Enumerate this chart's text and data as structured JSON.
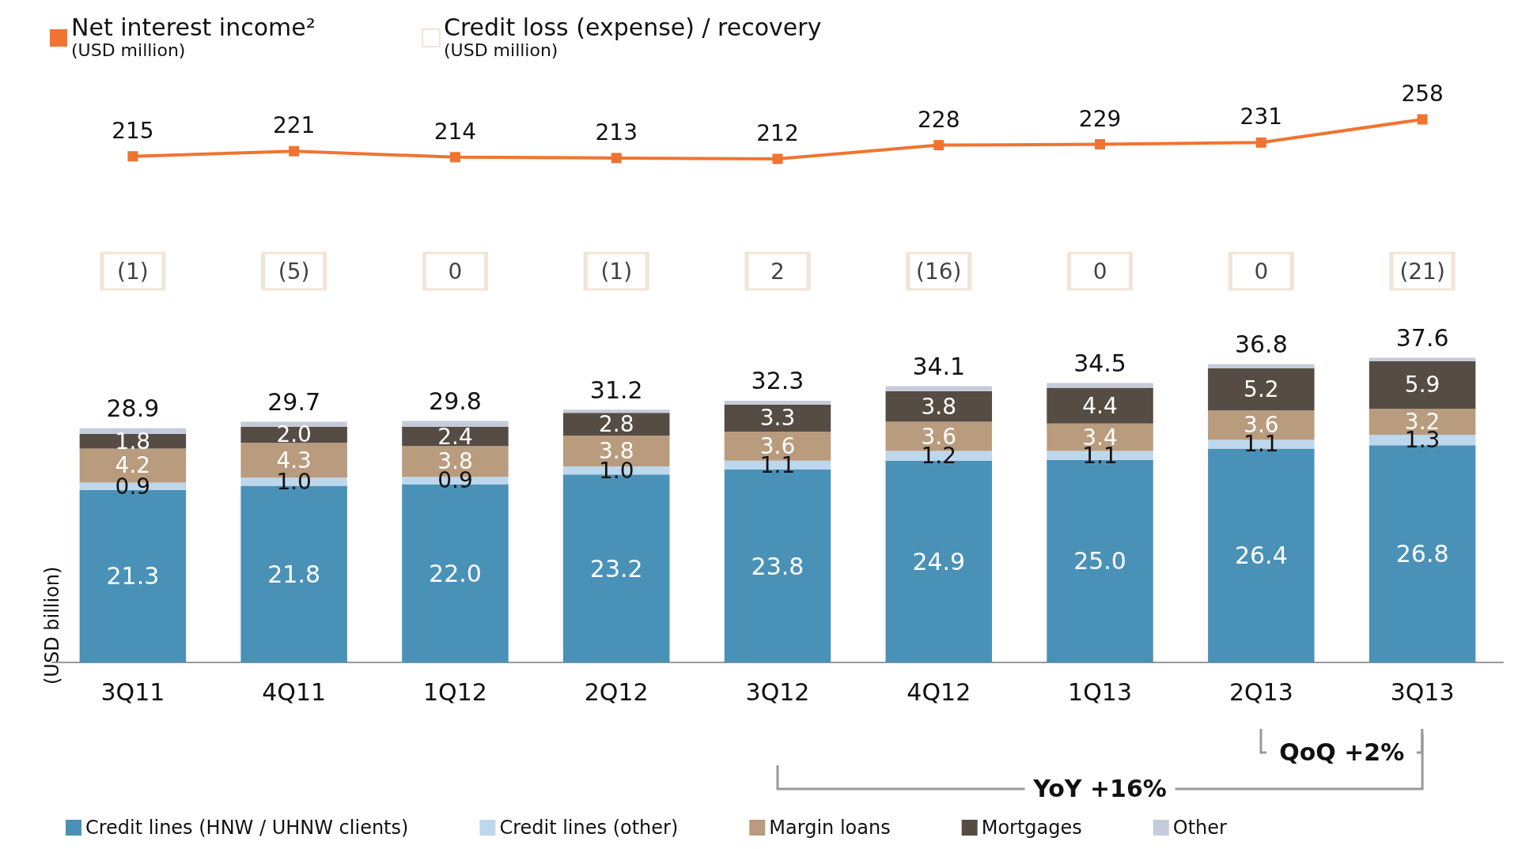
{
  "chart_data": [
    {
      "type": "line",
      "tick_labels": false,
      "grid": false,
      "legend": "top left",
      "marker": "square",
      "data_labels": true,
      "series": [
        {
          "name": "Net interest income²\n(USD million)",
          "color": "#f07431",
          "values": [
            215,
            221,
            214,
            213,
            212,
            228,
            229,
            231,
            258
          ]
        }
      ]
    },
    {
      "type": "other",
      "legend": "top left",
      "series": [
        {
          "name": "Credit loss (expense) / recovery\n(USD million)",
          "color": "#ecdfd0",
          "values": [
            -1,
            -5,
            0,
            -1,
            2,
            -16,
            0,
            0,
            -21
          ],
          "value_labels": [
            "(1)",
            "(5)",
            "0",
            "(1)",
            "2",
            "(16)",
            "0",
            "0",
            "(21)"
          ]
        }
      ]
    },
    {
      "type": "bar",
      "stacked": true,
      "categories": [
        "3Q11",
        "4Q11",
        "1Q12",
        "2Q12",
        "3Q12",
        "4Q12",
        "1Q13",
        "2Q13",
        "3Q13"
      ],
      "ylabel": "(USD billion)",
      "tick_labels": "x",
      "grid": false,
      "legend": "bottom",
      "series": [
        {
          "name": "Credit lines (HNW / UHNW clients)",
          "color": "#4a91b8",
          "values": [
            21.3,
            21.8,
            22.0,
            23.2,
            23.8,
            24.9,
            25.0,
            26.4,
            26.8
          ],
          "value_labels": [
            "21.3",
            "21.8",
            "22.0",
            "23.2",
            "23.8",
            "24.9",
            "25.0",
            "26.4",
            "26.8"
          ]
        },
        {
          "name": "Credit lines (other)",
          "color": "#bdd7ec",
          "values": [
            0.9,
            1.0,
            0.9,
            1.0,
            1.1,
            1.2,
            1.1,
            1.1,
            1.3
          ],
          "value_labels": [
            "0.9",
            "1.0",
            "0.9",
            "1.0",
            "1.1",
            "1.2",
            "1.1",
            "1.1",
            "1.3"
          ]
        },
        {
          "name": "Margin loans",
          "color": "#b99b7d",
          "values": [
            4.2,
            4.3,
            3.8,
            3.8,
            3.6,
            3.6,
            3.4,
            3.6,
            3.2
          ],
          "value_labels": [
            "4.2",
            "4.3",
            "3.8",
            "3.8",
            "3.6",
            "3.6",
            "3.4",
            "3.6",
            "3.2"
          ]
        },
        {
          "name": "Mortgages",
          "color": "#554c44",
          "values": [
            1.8,
            2.0,
            2.4,
            2.8,
            3.3,
            3.8,
            4.4,
            5.2,
            5.9
          ],
          "value_labels": [
            "1.8",
            "2.0",
            "2.4",
            "2.8",
            "3.3",
            "3.8",
            "4.4",
            "5.2",
            "5.9"
          ]
        },
        {
          "name": "Other",
          "color": "#c5cbda",
          "values": [
            0.7,
            0.6,
            0.7,
            0.4,
            0.5,
            0.6,
            0.6,
            0.5,
            0.4
          ]
        }
      ],
      "totals": [
        "28.9",
        "29.7",
        "29.8",
        "31.2",
        "32.3",
        "34.1",
        "34.5",
        "36.8",
        "37.6"
      ],
      "annotations": [
        "QoQ +2%",
        "YoY +16%"
      ]
    }
  ]
}
